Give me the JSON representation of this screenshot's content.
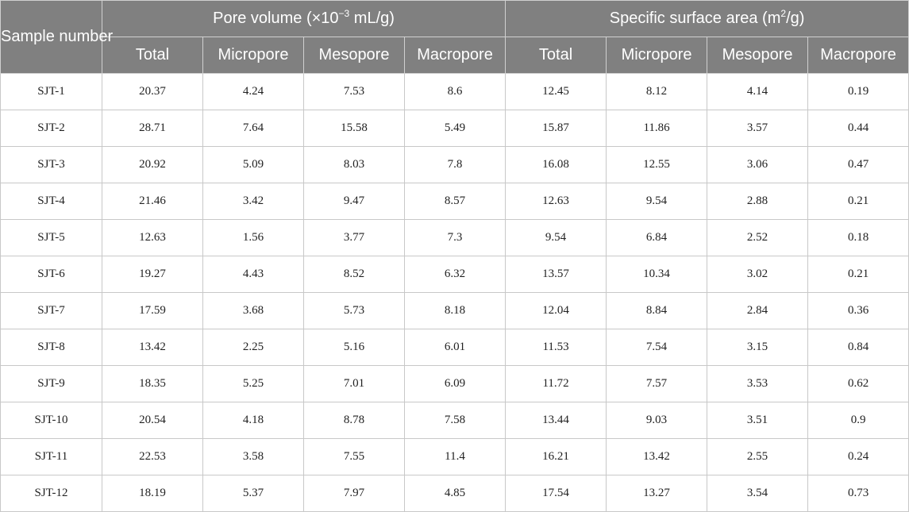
{
  "table": {
    "header": {
      "sample_number": "Sample number",
      "pore_volume": {
        "prefix": "Pore volume (×10",
        "sup": "−3",
        "suffix": " mL/g)"
      },
      "surface_area": {
        "prefix": "Specific surface area (m",
        "sup": "2",
        "suffix": "/g)"
      },
      "subcolumns": [
        "Total",
        "Micropore",
        "Mesopore",
        "Macropore",
        "Total",
        "Micropore",
        "Mesopore",
        "Macropore"
      ]
    },
    "rows": [
      [
        "SJT-1",
        "20.37",
        "4.24",
        "7.53",
        "8.6",
        "12.45",
        "8.12",
        "4.14",
        "0.19"
      ],
      [
        "SJT-2",
        "28.71",
        "7.64",
        "15.58",
        "5.49",
        "15.87",
        "11.86",
        "3.57",
        "0.44"
      ],
      [
        "SJT-3",
        "20.92",
        "5.09",
        "8.03",
        "7.8",
        "16.08",
        "12.55",
        "3.06",
        "0.47"
      ],
      [
        "SJT-4",
        "21.46",
        "3.42",
        "9.47",
        "8.57",
        "12.63",
        "9.54",
        "2.88",
        "0.21"
      ],
      [
        "SJT-5",
        "12.63",
        "1.56",
        "3.77",
        "7.3",
        "9.54",
        "6.84",
        "2.52",
        "0.18"
      ],
      [
        "SJT-6",
        "19.27",
        "4.43",
        "8.52",
        "6.32",
        "13.57",
        "10.34",
        "3.02",
        "0.21"
      ],
      [
        "SJT-7",
        "17.59",
        "3.68",
        "5.73",
        "8.18",
        "12.04",
        "8.84",
        "2.84",
        "0.36"
      ],
      [
        "SJT-8",
        "13.42",
        "2.25",
        "5.16",
        "6.01",
        "11.53",
        "7.54",
        "3.15",
        "0.84"
      ],
      [
        "SJT-9",
        "18.35",
        "5.25",
        "7.01",
        "6.09",
        "11.72",
        "7.57",
        "3.53",
        "0.62"
      ],
      [
        "SJT-10",
        "20.54",
        "4.18",
        "8.78",
        "7.58",
        "13.44",
        "9.03",
        "3.51",
        "0.9"
      ],
      [
        "SJT-11",
        "22.53",
        "3.58",
        "7.55",
        "11.4",
        "16.21",
        "13.42",
        "2.55",
        "0.24"
      ],
      [
        "SJT-12",
        "18.19",
        "5.37",
        "7.97",
        "4.85",
        "17.54",
        "13.27",
        "3.54",
        "0.73"
      ]
    ]
  }
}
